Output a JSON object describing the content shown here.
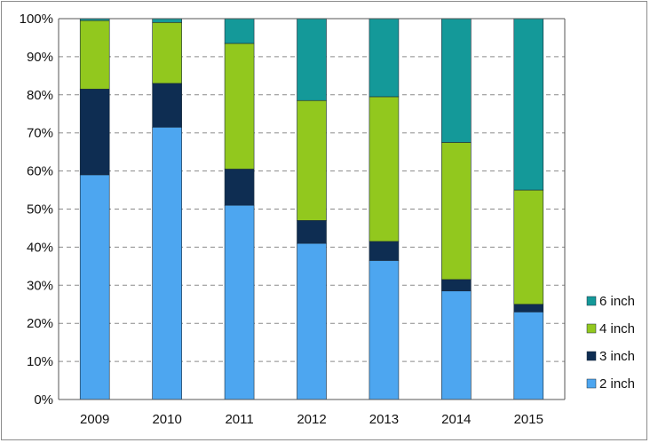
{
  "chart_data": {
    "type": "bar",
    "stacked": true,
    "percent": true,
    "categories": [
      "2009",
      "2010",
      "2011",
      "2012",
      "2013",
      "2014",
      "2015"
    ],
    "series": [
      {
        "name": "2 inch",
        "color": "#4da6f0",
        "values": [
          59,
          71.5,
          51,
          41,
          36.5,
          28.5,
          23
        ]
      },
      {
        "name": "3 inch",
        "color": "#0e2d52",
        "values": [
          22.5,
          11.5,
          9.5,
          6,
          5,
          3,
          2
        ]
      },
      {
        "name": "4 inch",
        "color": "#92c81e",
        "values": [
          18,
          16,
          33,
          31.5,
          38,
          36,
          30
        ]
      },
      {
        "name": "6 inch",
        "color": "#149999",
        "values": [
          0.5,
          1,
          6.5,
          21.5,
          20.5,
          32.5,
          45
        ]
      }
    ],
    "yticks": [
      "0%",
      "10%",
      "20%",
      "30%",
      "40%",
      "50%",
      "60%",
      "70%",
      "80%",
      "90%",
      "100%"
    ],
    "ylim": [
      0,
      100
    ],
    "grid": "horizontal-dashed",
    "legend": {
      "position": "bottom-right",
      "order": [
        "6 inch",
        "4 inch",
        "3 inch",
        "2 inch"
      ]
    }
  }
}
